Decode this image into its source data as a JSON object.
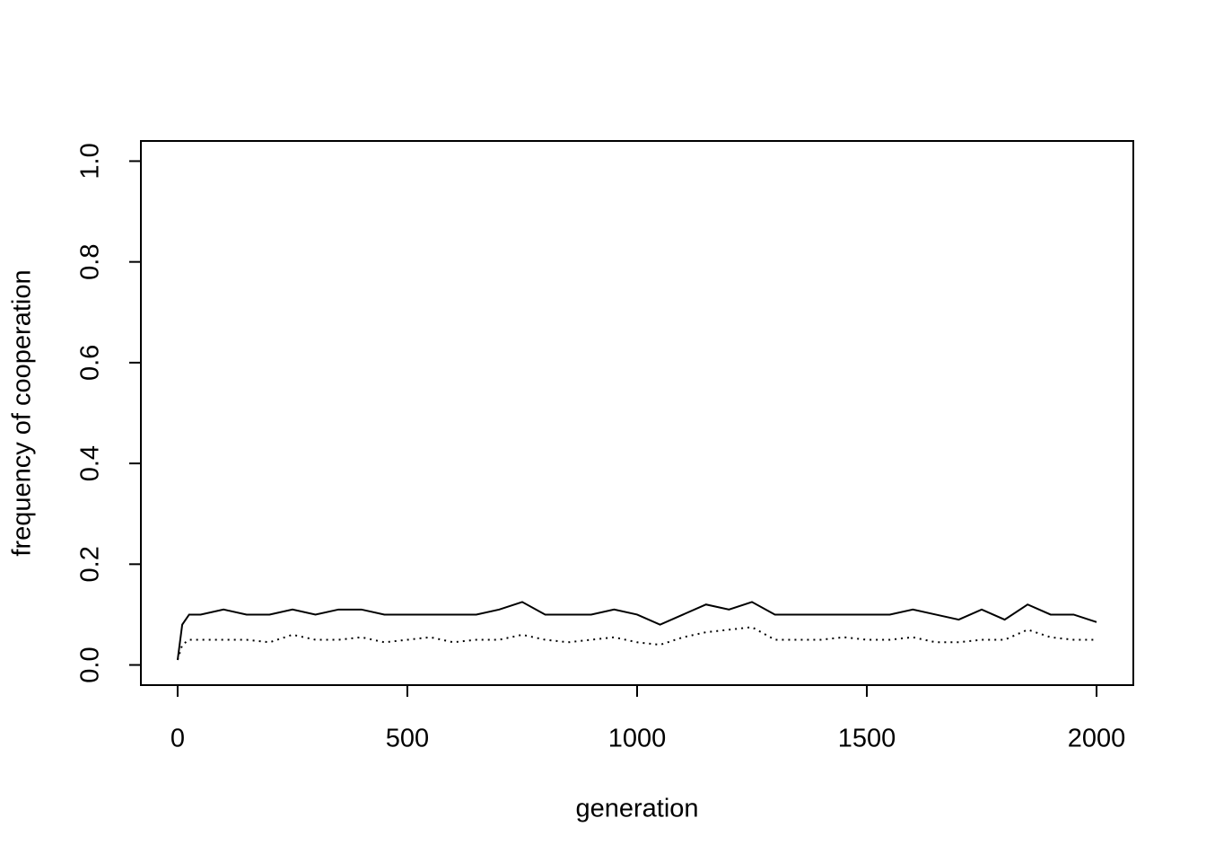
{
  "chart_data": {
    "type": "line",
    "xlabel": "generation",
    "ylabel": "frequency of cooperation",
    "x": [
      0,
      10,
      25,
      50,
      100,
      150,
      200,
      250,
      300,
      350,
      400,
      450,
      500,
      550,
      600,
      650,
      700,
      750,
      800,
      850,
      900,
      950,
      1000,
      1050,
      1100,
      1150,
      1200,
      1250,
      1300,
      1350,
      1400,
      1450,
      1500,
      1550,
      1600,
      1650,
      1700,
      1750,
      1800,
      1850,
      1900,
      1950,
      2000
    ],
    "series": [
      {
        "color": "#000000",
        "dash": "solid",
        "values": [
          0.01,
          0.08,
          0.1,
          0.1,
          0.11,
          0.1,
          0.1,
          0.11,
          0.1,
          0.11,
          0.11,
          0.1,
          0.1,
          0.1,
          0.1,
          0.1,
          0.11,
          0.125,
          0.1,
          0.1,
          0.1,
          0.11,
          0.1,
          0.08,
          0.1,
          0.12,
          0.11,
          0.125,
          0.1,
          0.1,
          0.1,
          0.1,
          0.1,
          0.1,
          0.11,
          0.1,
          0.09,
          0.11,
          0.09,
          0.12,
          0.1,
          0.1,
          0.085
        ]
      },
      {
        "color": "#000000",
        "dash": "dotted",
        "values": [
          0.01,
          0.04,
          0.05,
          0.05,
          0.05,
          0.05,
          0.045,
          0.06,
          0.05,
          0.05,
          0.055,
          0.045,
          0.05,
          0.055,
          0.045,
          0.05,
          0.05,
          0.06,
          0.05,
          0.045,
          0.05,
          0.055,
          0.045,
          0.04,
          0.055,
          0.065,
          0.07,
          0.075,
          0.05,
          0.05,
          0.05,
          0.055,
          0.05,
          0.05,
          0.055,
          0.045,
          0.045,
          0.05,
          0.05,
          0.07,
          0.055,
          0.05,
          0.05
        ]
      }
    ],
    "xlim": [
      -80,
      2080
    ],
    "ylim": [
      -0.04,
      1.04
    ],
    "xticks": [
      0,
      500,
      1000,
      1500,
      2000
    ],
    "yticks": [
      {
        "value": 0,
        "label": "0.0"
      },
      0.2,
      0.4,
      0.6,
      0.8,
      {
        "value": 1,
        "label": "1.0"
      }
    ]
  }
}
